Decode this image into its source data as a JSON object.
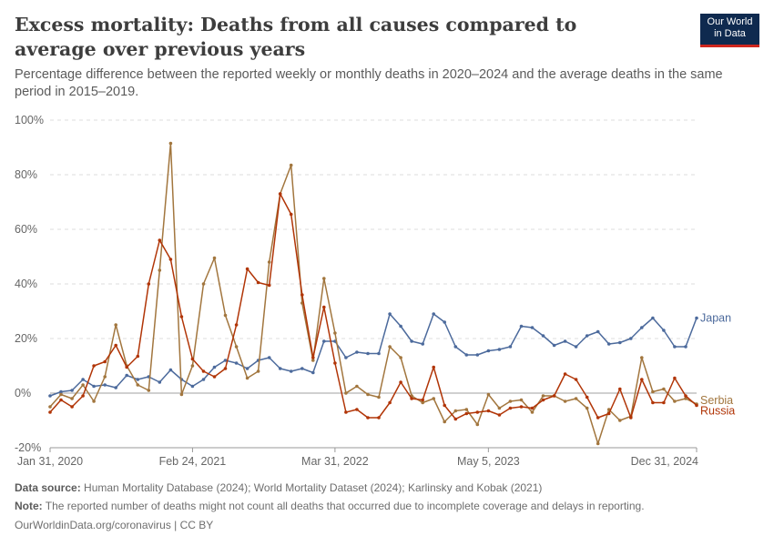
{
  "header": {
    "title": "Excess mortality: Deaths from all causes compared to average over previous years",
    "subtitle": "Percentage difference between the reported weekly or monthly deaths in 2020–2024 and the average deaths in the same period in 2015–2019.",
    "logo_line1": "Our World",
    "logo_line2": "in Data"
  },
  "footer": {
    "source_label": "Data source:",
    "source_text": "Human Mortality Database (2024); World Mortality Dataset (2024); Karlinsky and Kobak (2021)",
    "note_label": "Note:",
    "note_text": "The reported number of deaths might not count all deaths that occurred due to incomplete coverage and delays in reporting.",
    "credit": "OurWorldinData.org/coronavirus | CC BY"
  },
  "chart_data": {
    "type": "line",
    "x_unit": "month",
    "x": [
      "2020-01",
      "2020-02",
      "2020-03",
      "2020-04",
      "2020-05",
      "2020-06",
      "2020-07",
      "2020-08",
      "2020-09",
      "2020-10",
      "2020-11",
      "2020-12",
      "2021-01",
      "2021-02",
      "2021-03",
      "2021-04",
      "2021-05",
      "2021-06",
      "2021-07",
      "2021-08",
      "2021-09",
      "2021-10",
      "2021-11",
      "2021-12",
      "2022-01",
      "2022-02",
      "2022-03",
      "2022-04",
      "2022-05",
      "2022-06",
      "2022-07",
      "2022-08",
      "2022-09",
      "2022-10",
      "2022-11",
      "2022-12",
      "2023-01",
      "2023-02",
      "2023-03",
      "2023-04",
      "2023-05",
      "2023-06",
      "2023-07",
      "2023-08",
      "2023-09",
      "2023-10",
      "2023-11",
      "2023-12",
      "2024-01",
      "2024-02",
      "2024-03",
      "2024-04",
      "2024-05",
      "2024-06",
      "2024-07",
      "2024-08",
      "2024-09",
      "2024-10",
      "2024-11",
      "2024-12"
    ],
    "x_ticks": [
      "Jan 31, 2020",
      "Feb 24, 2021",
      "Mar 31, 2022",
      "May 5, 2023",
      "Dec 31, 2024"
    ],
    "x_tick_positions": [
      "2020-01",
      "2021-02",
      "2022-03",
      "2023-05",
      "2024-12"
    ],
    "y_ticks": [
      -20,
      0,
      20,
      40,
      60,
      80,
      100
    ],
    "y_tick_labels": [
      "-20%",
      "0%",
      "20%",
      "40%",
      "60%",
      "80%",
      "100%"
    ],
    "ylim": [
      -20,
      100
    ],
    "grid": true,
    "legend": "right",
    "series": [
      {
        "name": "Japan",
        "color": "#4c6a9c",
        "values": [
          -1,
          0.5,
          1,
          5,
          2.5,
          3,
          2,
          6.5,
          5,
          6,
          4,
          8.5,
          5,
          2.5,
          5,
          9.5,
          12,
          11,
          9,
          12,
          13,
          9,
          8,
          9,
          7.5,
          19,
          19,
          13,
          15,
          14.5,
          14.5,
          29,
          24.5,
          19,
          18,
          29,
          26,
          17,
          14,
          14,
          15.5,
          16,
          17,
          24.5,
          24,
          21,
          17.5,
          19,
          17,
          21,
          22.5,
          18,
          18.5,
          20,
          24,
          27.5,
          23,
          17,
          17,
          27.5
        ]
      },
      {
        "name": "Serbia",
        "color": "#a2763e",
        "values": [
          -5,
          -0.5,
          -2,
          3,
          -3,
          6,
          25,
          10,
          3,
          1,
          45,
          91.5,
          -0.5,
          10,
          40,
          49.5,
          28.5,
          17,
          5.5,
          8,
          48,
          73,
          83.5,
          33,
          12,
          42,
          22,
          0,
          2.5,
          -0.5,
          -1.5,
          17,
          13,
          -1,
          -3.5,
          -2,
          -10.5,
          -6.5,
          -6,
          -11.5,
          -0.5,
          -5.5,
          -3,
          -2.5,
          -7,
          -1,
          -1,
          -3,
          -2,
          -5.5,
          -18.5,
          -6,
          -10,
          -8.5,
          13,
          0.5,
          1.5,
          -3,
          -2,
          -4
        ]
      },
      {
        "name": "Russia",
        "color": "#b13507",
        "values": [
          -7,
          -2.5,
          -5,
          -1,
          10,
          11.5,
          17.5,
          9.5,
          13.5,
          40,
          56,
          49,
          28,
          12.5,
          8,
          6,
          9,
          25,
          45.5,
          40.5,
          39.5,
          73,
          65.5,
          36,
          13,
          31.5,
          11,
          -7,
          -6,
          -9,
          -9,
          -3.5,
          4,
          -2,
          -2.5,
          9.5,
          -4.5,
          -9.5,
          -7.5,
          -7,
          -6.5,
          -8,
          -5.5,
          -5,
          -5.5,
          -2.5,
          -1,
          7,
          5,
          -1.5,
          -9,
          -7.5,
          1.5,
          -9,
          5,
          -3.5,
          -3.5,
          5.5,
          -1,
          -4.5
        ]
      }
    ]
  }
}
